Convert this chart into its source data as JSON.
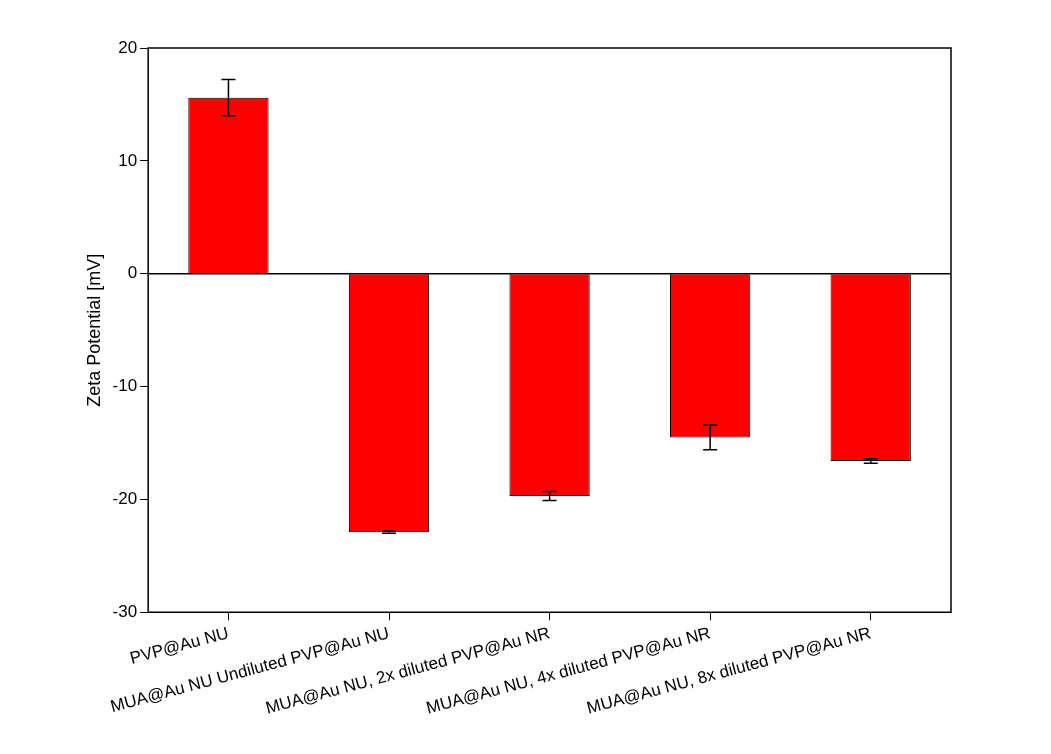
{
  "chart_data": {
    "type": "bar",
    "ylabel": "Zeta Potential [mV]",
    "categories": [
      "PVP@Au NU",
      "MUA@Au NU Undiluted PVP@Au NU",
      "MUA@Au NU, 2x diluted PVP@Au NR",
      "MUA@Au NU, 4x diluted PVP@Au NR",
      "MUA@Au NU, 8x diluted PVP@Au NR"
    ],
    "values": [
      15.6,
      -22.9,
      -19.7,
      -14.5,
      -16.6
    ],
    "errors": [
      1.6,
      0.1,
      0.4,
      1.1,
      0.2
    ],
    "color": "#ff0000",
    "ylim": [
      -30,
      20
    ],
    "yticks": [
      -30,
      -20,
      -10,
      0,
      10,
      20
    ],
    "legend": false
  }
}
